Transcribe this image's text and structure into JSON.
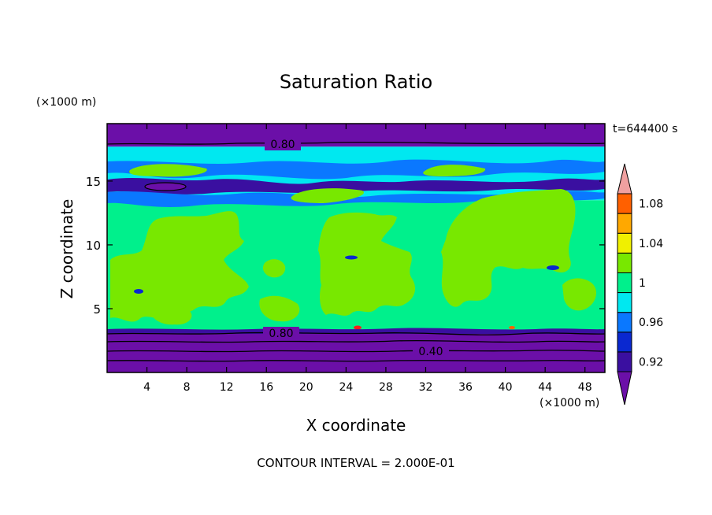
{
  "chart_data": {
    "type": "heatmap",
    "title": "Saturation Ratio",
    "xlabel": "X coordinate",
    "ylabel": "Z coordinate",
    "x_unit": "(×1000 m)",
    "z_unit": "(×1000 m)",
    "time_label": "t=644400 s",
    "footer": "CONTOUR INTERVAL = 2.000E-01",
    "xlim": [
      0,
      50
    ],
    "ylim": [
      0,
      19.5
    ],
    "x_ticks": [
      "4",
      "8",
      "12",
      "16",
      "20",
      "24",
      "28",
      "32",
      "36",
      "40",
      "44",
      "48"
    ],
    "y_ticks": [
      "5",
      "10",
      "15"
    ],
    "colorbar": {
      "levels": [
        0.92,
        0.94,
        0.96,
        0.98,
        1.0,
        1.02,
        1.04,
        1.06,
        1.08,
        1.1
      ],
      "labels": [
        "0.92",
        "0.96",
        "1",
        "1.04",
        "1.08"
      ],
      "colors": [
        "#6b0fa8",
        "#3a0fa0",
        "#0a28d0",
        "#0a78ff",
        "#00e8f0",
        "#00f08c",
        "#78e800",
        "#f0f000",
        "#ffa800",
        "#ff6000",
        "#ff1a1a",
        "#f0a0a0"
      ]
    },
    "contour_labels": [
      "0.80",
      "0.80",
      "0.40"
    ],
    "bands": [
      {
        "z_from": 0.0,
        "z_to": 3.2,
        "color": "#6b0fa8"
      },
      {
        "z_from": 3.2,
        "z_to": 13.5,
        "color": "#00f08c"
      },
      {
        "z_from": 13.5,
        "z_to": 17.7,
        "color": "#00e8f0"
      },
      {
        "z_from": 17.7,
        "z_to": 19.5,
        "color": "#6b0fa8"
      }
    ]
  }
}
